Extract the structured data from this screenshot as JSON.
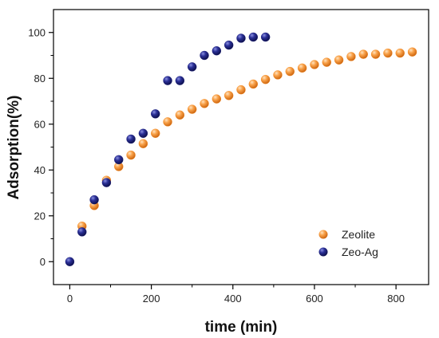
{
  "chart_data": {
    "type": "scatter",
    "xlabel": "time (min)",
    "ylabel": "Adsorption(%)",
    "xlim": [
      -40,
      880
    ],
    "ylim": [
      -10,
      110
    ],
    "xticks": [
      0,
      200,
      400,
      600,
      800
    ],
    "yticks": [
      0,
      20,
      40,
      60,
      80,
      100
    ],
    "grid": false,
    "legend_position": "bottom-right",
    "series": [
      {
        "name": "Zeolite",
        "color": "#F58A1F",
        "x": [
          30,
          60,
          90,
          120,
          150,
          180,
          210,
          240,
          270,
          300,
          330,
          360,
          390,
          420,
          450,
          480,
          510,
          540,
          570,
          600,
          630,
          660,
          690,
          720,
          750,
          780,
          810,
          840
        ],
        "y": [
          15.5,
          24.5,
          35.5,
          41.5,
          46.5,
          51.5,
          56,
          61,
          64,
          66.5,
          69,
          71,
          72.5,
          75,
          77.5,
          79.5,
          81.5,
          83,
          84.5,
          86,
          87,
          88,
          89.5,
          90.5,
          90.5,
          91,
          91,
          91.5
        ]
      },
      {
        "name": "Zeo-Ag",
        "color": "#1A1E7A",
        "x": [
          0,
          30,
          60,
          90,
          120,
          150,
          180,
          210,
          240,
          270,
          300,
          330,
          360,
          390,
          420,
          450,
          480
        ],
        "y": [
          0,
          13,
          27,
          34.5,
          44.5,
          53.5,
          56,
          64.5,
          79,
          79,
          85,
          90,
          92,
          94.5,
          97.5,
          98,
          98
        ]
      }
    ]
  }
}
